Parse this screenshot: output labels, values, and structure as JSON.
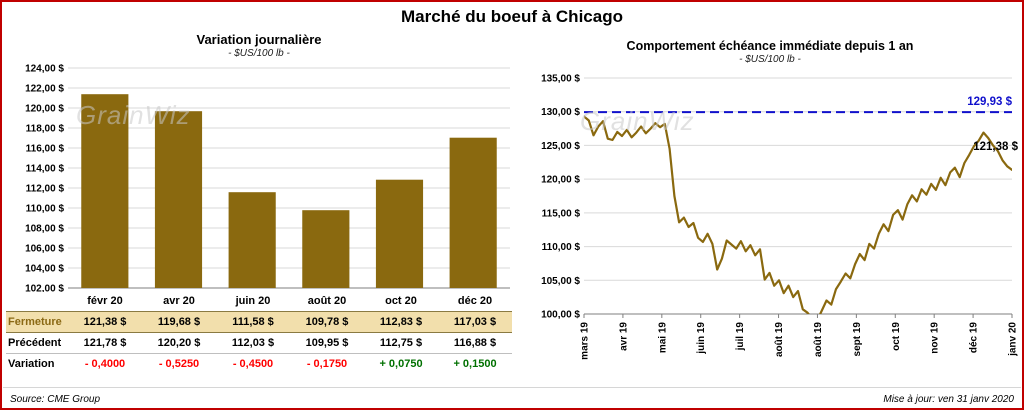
{
  "page": {
    "title": "Marché du boeuf à Chicago",
    "source": "Source: CME Group",
    "updated": "Mise à jour: ven 31 janv 2020",
    "watermark": "GrainWiz"
  },
  "colors": {
    "border_red": "#C00000",
    "bar_fill": "#8A690F",
    "line_color": "#8A690F",
    "ref_line_blue": "#1010CC",
    "fermeture_bg": "#F2DFAC",
    "fermeture_text": "#8B6914",
    "negative": "#FF0000",
    "positive": "#007000",
    "grid": "#D9D9D9",
    "axis": "#7f7f7f"
  },
  "chart_data": [
    {
      "type": "bar",
      "title": "Variation  journalière",
      "subtitle": "- $US/100 lb -",
      "categories": [
        "févr 20",
        "avr 20",
        "juin 20",
        "août 20",
        "oct 20",
        "déc 20"
      ],
      "values": [
        121.38,
        119.68,
        111.58,
        109.78,
        112.83,
        117.03
      ],
      "ylim": [
        102,
        124
      ],
      "ytick_step": 2,
      "tick_suffix": " $",
      "grid": true,
      "legend": "none"
    },
    {
      "type": "line",
      "title": "Comportement  échéance  immédiate  depuis 1 an",
      "subtitle": "- $US/100 lb -",
      "x_labels": [
        "mars 19",
        "avr 19",
        "mai 19",
        "juin 19",
        "juil 19",
        "août 19",
        "août 19",
        "sept 19",
        "oct 19",
        "nov 19",
        "déc 19",
        "janv 20"
      ],
      "values": [
        129.3,
        128.7,
        126.5,
        127.8,
        128.6,
        126.0,
        125.8,
        127.0,
        126.4,
        127.3,
        126.2,
        126.9,
        127.8,
        126.8,
        127.5,
        128.3,
        127.7,
        128.2,
        124.5,
        117.5,
        113.6,
        114.3,
        112.9,
        113.5,
        111.3,
        110.7,
        111.9,
        110.4,
        106.6,
        108.2,
        110.9,
        110.3,
        109.7,
        110.8,
        109.3,
        110.2,
        108.7,
        109.6,
        105.1,
        106.1,
        104.2,
        105.0,
        103.1,
        104.2,
        102.5,
        103.4,
        100.7,
        100.2,
        99.3,
        99.0,
        100.5,
        102.0,
        101.4,
        103.7,
        104.8,
        106.0,
        105.3,
        107.4,
        108.9,
        108.0,
        110.4,
        109.7,
        111.9,
        113.3,
        112.3,
        114.7,
        115.4,
        114.0,
        116.3,
        117.6,
        116.7,
        118.5,
        117.7,
        119.3,
        118.4,
        120.2,
        119.1,
        121.0,
        121.7,
        120.3,
        122.4,
        123.6,
        124.9,
        125.7,
        126.9,
        126.1,
        125.0,
        124.2,
        122.8,
        121.9,
        121.38
      ],
      "ylim": [
        100,
        135
      ],
      "ytick_step": 5,
      "tick_suffix": " $",
      "grid": true,
      "legend": "none",
      "ref_line": {
        "value": 129.93,
        "label": "129,93 $"
      },
      "last_label": "121,38 $"
    }
  ],
  "table": {
    "rows": [
      {
        "label": "Fermeture",
        "style": "fermeture",
        "values": [
          "121,38  $",
          "119,68  $",
          "111,58  $",
          "109,78  $",
          "112,83  $",
          "117,03  $"
        ]
      },
      {
        "label": "Précédent",
        "style": "plain",
        "values": [
          "121,78  $",
          "120,20  $",
          "112,03  $",
          "109,95  $",
          "112,75  $",
          "116,88  $"
        ]
      },
      {
        "label": "Variation",
        "style": "variation",
        "values": [
          "- 0,4000",
          "- 0,5250",
          "- 0,4500",
          "- 0,1750",
          "+ 0,0750",
          "+ 0,1500"
        ]
      }
    ]
  }
}
